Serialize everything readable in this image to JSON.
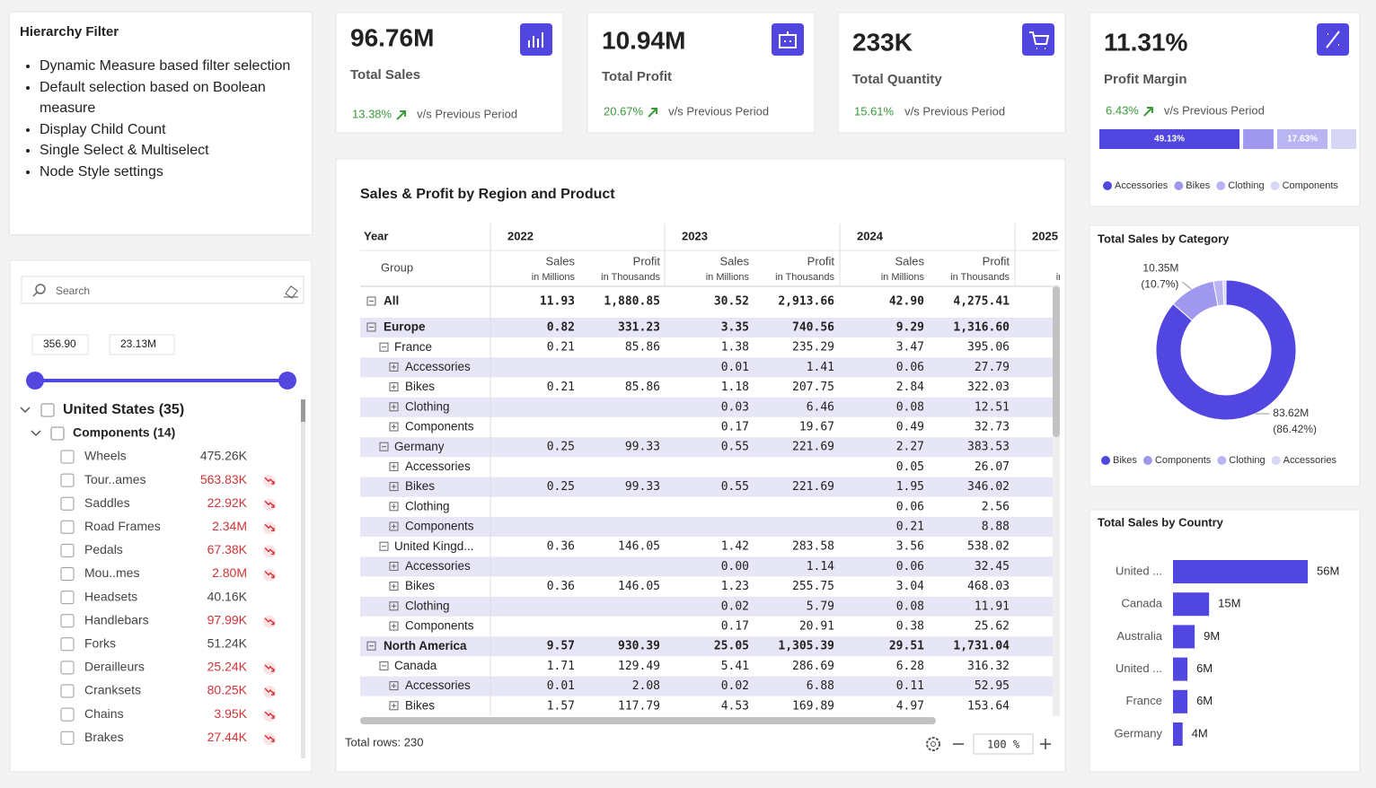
{
  "hierarchy_filter": {
    "title": "Hierarchy Filter",
    "bullets": [
      "Dynamic Measure based filter selection",
      "Default selection based on Boolean measure",
      "Display Child Count",
      "Single Select & Multiselect",
      "Node Style settings"
    ]
  },
  "slicer": {
    "search_placeholder": "Search",
    "range": [
      "356.90",
      "23.13M"
    ],
    "tree": [
      {
        "label": "United States (35)",
        "level": 0
      },
      {
        "label": "Components (14)",
        "level": 1
      }
    ],
    "items": [
      {
        "label": "Wheels",
        "value": "475.26K",
        "flag": false
      },
      {
        "label": "Tour..ames",
        "value": "563.83K",
        "flag": true
      },
      {
        "label": "Saddles",
        "value": "22.92K",
        "flag": true
      },
      {
        "label": "Road Frames",
        "value": "2.34M",
        "flag": true
      },
      {
        "label": "Pedals",
        "value": "67.38K",
        "flag": true
      },
      {
        "label": "Mou..mes",
        "value": "2.80M",
        "flag": true
      },
      {
        "label": "Headsets",
        "value": "40.16K",
        "flag": false
      },
      {
        "label": "Handlebars",
        "value": "97.99K",
        "flag": true
      },
      {
        "label": "Forks",
        "value": "51.24K",
        "flag": false
      },
      {
        "label": "Derailleurs",
        "value": "25.24K",
        "flag": true
      },
      {
        "label": "Cranksets",
        "value": "80.25K",
        "flag": true
      },
      {
        "label": "Chains",
        "value": "3.95K",
        "flag": true
      },
      {
        "label": "Brakes",
        "value": "27.44K",
        "flag": true
      }
    ]
  },
  "kpis": [
    {
      "value": "96.76M",
      "label": "Total Sales",
      "change": "13.38%",
      "arrow": true,
      "comparison": "v/s Previous Period"
    },
    {
      "value": "10.94M",
      "label": "Total Profit",
      "change": "20.67%",
      "arrow": true,
      "comparison": "v/s Previous Period"
    },
    {
      "value": "233K",
      "label": "Total Quantity",
      "change": "15.61%",
      "arrow": false,
      "comparison": "v/s Previous Period"
    },
    {
      "value": "11.31%",
      "label": "Profit Margin",
      "change": "6.43%",
      "arrow": true,
      "comparison": "v/s Previous Period"
    }
  ],
  "matrix": {
    "title": "Sales & Profit by Region and Product",
    "year_header": "Year",
    "group_header": "Group",
    "years": [
      "2022",
      "2023",
      "2024",
      "2025"
    ],
    "measures": [
      {
        "name": "Sales",
        "unit": "in Millions"
      },
      {
        "name": "Profit",
        "unit": "in Thousands"
      }
    ],
    "rows": [
      {
        "label": "All",
        "level": 0,
        "cells": [
          "11.93",
          "1,880.85",
          "30.52",
          "2,913.66",
          "42.90",
          "4,275.41"
        ]
      },
      {
        "label": "Europe",
        "level": 0,
        "cells": [
          "0.82",
          "331.23",
          "3.35",
          "740.56",
          "9.29",
          "1,316.60"
        ]
      },
      {
        "label": "France",
        "level": 1,
        "cells": [
          "0.21",
          "85.86",
          "1.38",
          "235.29",
          "3.47",
          "395.06"
        ]
      },
      {
        "label": "Accessories",
        "level": 2,
        "cells": [
          null,
          null,
          "0.01",
          "1.41",
          "0.06",
          "27.79"
        ]
      },
      {
        "label": "Bikes",
        "level": 2,
        "cells": [
          "0.21",
          "85.86",
          "1.18",
          "207.75",
          "2.84",
          "322.03"
        ]
      },
      {
        "label": "Clothing",
        "level": 2,
        "cells": [
          null,
          null,
          "0.03",
          "6.46",
          "0.08",
          "12.51"
        ]
      },
      {
        "label": "Components",
        "level": 2,
        "cells": [
          null,
          null,
          "0.17",
          "19.67",
          "0.49",
          "32.73"
        ]
      },
      {
        "label": "Germany",
        "level": 1,
        "cells": [
          "0.25",
          "99.33",
          "0.55",
          "221.69",
          "2.27",
          "383.53"
        ]
      },
      {
        "label": "Accessories",
        "level": 2,
        "cells": [
          null,
          null,
          null,
          null,
          "0.05",
          "26.07"
        ]
      },
      {
        "label": "Bikes",
        "level": 2,
        "cells": [
          "0.25",
          "99.33",
          "0.55",
          "221.69",
          "1.95",
          "346.02"
        ]
      },
      {
        "label": "Clothing",
        "level": 2,
        "cells": [
          null,
          null,
          null,
          null,
          "0.06",
          "2.56"
        ]
      },
      {
        "label": "Components",
        "level": 2,
        "cells": [
          null,
          null,
          null,
          null,
          "0.21",
          "8.88"
        ]
      },
      {
        "label": "United Kingd...",
        "level": 1,
        "cells": [
          "0.36",
          "146.05",
          "1.42",
          "283.58",
          "3.56",
          "538.02"
        ]
      },
      {
        "label": "Accessories",
        "level": 2,
        "cells": [
          null,
          null,
          "0.00",
          "1.14",
          "0.06",
          "32.45"
        ]
      },
      {
        "label": "Bikes",
        "level": 2,
        "cells": [
          "0.36",
          "146.05",
          "1.23",
          "255.75",
          "3.04",
          "468.03"
        ]
      },
      {
        "label": "Clothing",
        "level": 2,
        "cells": [
          null,
          null,
          "0.02",
          "5.79",
          "0.08",
          "11.91"
        ]
      },
      {
        "label": "Components",
        "level": 2,
        "cells": [
          null,
          null,
          "0.17",
          "20.91",
          "0.38",
          "25.62"
        ]
      },
      {
        "label": "North America",
        "level": 0,
        "cells": [
          "9.57",
          "930.39",
          "25.05",
          "1,305.39",
          "29.51",
          "1,731.04"
        ]
      },
      {
        "label": "Canada",
        "level": 1,
        "cells": [
          "1.71",
          "129.49",
          "5.41",
          "286.69",
          "6.28",
          "316.32"
        ]
      },
      {
        "label": "Accessories",
        "level": 2,
        "cells": [
          "0.01",
          "2.08",
          "0.02",
          "6.88",
          "0.11",
          "52.95"
        ]
      },
      {
        "label": "Bikes",
        "level": 2,
        "cells": [
          "1.57",
          "117.79",
          "4.53",
          "169.89",
          "4.97",
          "153.64"
        ]
      }
    ],
    "footer": "Total rows: 230",
    "zoom": "100 %"
  },
  "chart_data": [
    {
      "type": "bar",
      "stacked": true,
      "legend": "bottom",
      "series": [
        {
          "name": "Accessories",
          "color": "#5147e0",
          "values": [
            49.13
          ],
          "value_labels": [
            "49.13%"
          ]
        },
        {
          "name": "Bikes",
          "color": "#9f98ee",
          "values": [
            10.7
          ],
          "value_labels": [
            null
          ]
        },
        {
          "name": "Clothing",
          "color": "#b9b4f2",
          "values": [
            17.63
          ],
          "value_labels": [
            "17.63%"
          ]
        },
        {
          "name": "Components",
          "color": "#d8d6f5",
          "values": [
            8.8
          ],
          "value_labels": [
            null
          ]
        }
      ]
    },
    {
      "type": "donut",
      "title": "Total Sales by Category",
      "legend": "bottom",
      "categories": [
        "Bikes",
        "Components",
        "Clothing",
        "Accessories"
      ],
      "values": [
        83.62,
        10.35,
        2.12,
        0.67
      ],
      "value_labels": [
        "83.62M",
        "10.35M",
        null,
        null
      ],
      "share_labels": [
        "(86.42%)",
        "(10.7%)",
        null,
        null
      ],
      "colors": [
        "#5147e0",
        "#9f98ee",
        "#b9b4f2",
        "#d8d6f5"
      ]
    },
    {
      "type": "bar",
      "orientation": "horizontal",
      "title": "Total Sales by Country",
      "categories": [
        "United ...",
        "Canada",
        "Australia",
        "United ...",
        "France",
        "Germany"
      ],
      "values": [
        56,
        15,
        9,
        6,
        6,
        4
      ],
      "value_labels": [
        "56M",
        "15M",
        "9M",
        "6M",
        "6M",
        "4M"
      ],
      "color": "#5147e0"
    }
  ]
}
